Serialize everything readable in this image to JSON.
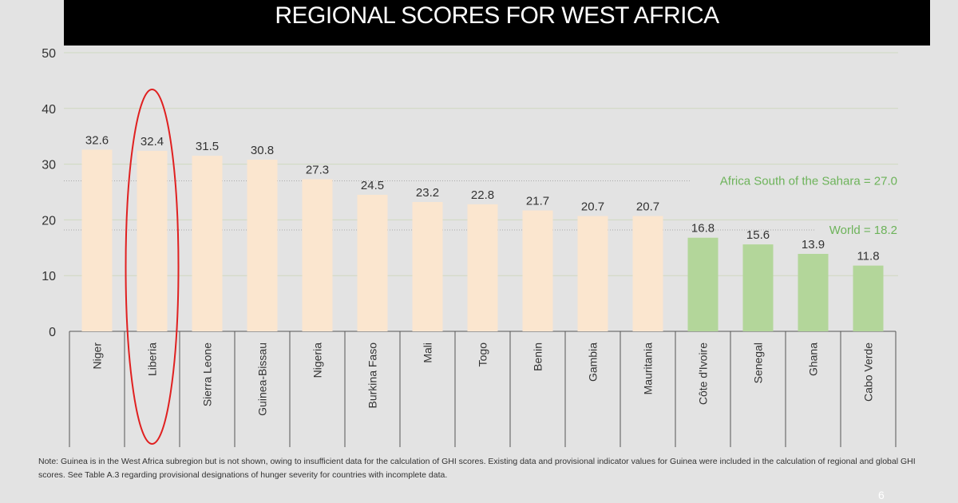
{
  "chart_data": {
    "type": "bar",
    "title": "REGIONAL SCORES FOR WEST AFRICA",
    "categories": [
      "Niger",
      "Liberia",
      "Sierra Leone",
      "Guinea-Bissau",
      "Nigeria",
      "Burkina Faso",
      "Mali",
      "Togo",
      "Benin",
      "Gambia",
      "Mauritania",
      "Côte d'Ivoire",
      "Senegal",
      "Ghana",
      "Cabo Verde"
    ],
    "values": [
      32.6,
      32.4,
      31.5,
      30.8,
      27.3,
      24.5,
      23.2,
      22.8,
      21.7,
      20.7,
      20.7,
      16.8,
      15.6,
      13.9,
      11.8
    ],
    "value_labels": [
      "32.6",
      "32.4",
      "31.5",
      "30.8",
      "27.3",
      "24.5",
      "23.2",
      "22.8",
      "21.7",
      "20.7",
      "20.7",
      "16.8",
      "15.6",
      "13.9",
      "11.8"
    ],
    "bar_colors": [
      "#fbe6cf",
      "#fbe6cf",
      "#fbe6cf",
      "#fbe6cf",
      "#fbe6cf",
      "#fbe6cf",
      "#fbe6cf",
      "#fbe6cf",
      "#fbe6cf",
      "#fbe6cf",
      "#fbe6cf",
      "#b3d69a",
      "#b3d69a",
      "#b3d69a",
      "#b3d69a"
    ],
    "ylim": [
      0,
      50
    ],
    "yticks": [
      "0",
      "10",
      "20",
      "30",
      "40",
      "50"
    ],
    "grid": true,
    "reference_lines": [
      {
        "label": "Africa South of the Sahara = 27.0",
        "value": 27.0,
        "color": "#6db35a"
      },
      {
        "label": "World = 18.2",
        "value": 18.2,
        "color": "#6db35a"
      }
    ],
    "highlight": {
      "category": "Liberia",
      "shape": "ellipse",
      "color": "#e02020"
    }
  },
  "note": "Note: Guinea is in the West Africa subregion but is not shown, owing to insufficient data for the calculation of GHI scores. Existing data and provisional indicator values for Guinea were included in the calculation of regional and global GHI scores. See Table A.3 regarding provisional designations of hunger severity for countries with incomplete data.",
  "page_number": "6"
}
